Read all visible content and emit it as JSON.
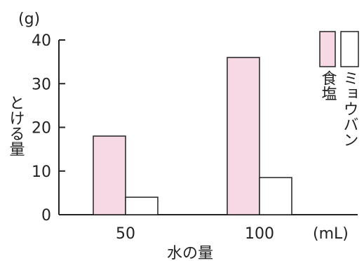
{
  "chart_data": {
    "type": "bar",
    "categories": [
      "50",
      "100"
    ],
    "series": [
      {
        "name": "食塩",
        "values": [
          18,
          36
        ]
      },
      {
        "name": "ミョウバン",
        "values": [
          4,
          8.5
        ]
      }
    ],
    "ylim": [
      0,
      40
    ],
    "yticks": [
      "0",
      "10",
      "20",
      "30",
      "40"
    ],
    "ylabel": "とける量",
    "yunit": "(g)",
    "xlabel": "水の量",
    "xunit": "(mL)",
    "legend_placement": "top-right",
    "grid": false,
    "colors": {
      "salt": "#f7d9e6",
      "alum": "#ffffff",
      "stroke": "#222222"
    }
  }
}
